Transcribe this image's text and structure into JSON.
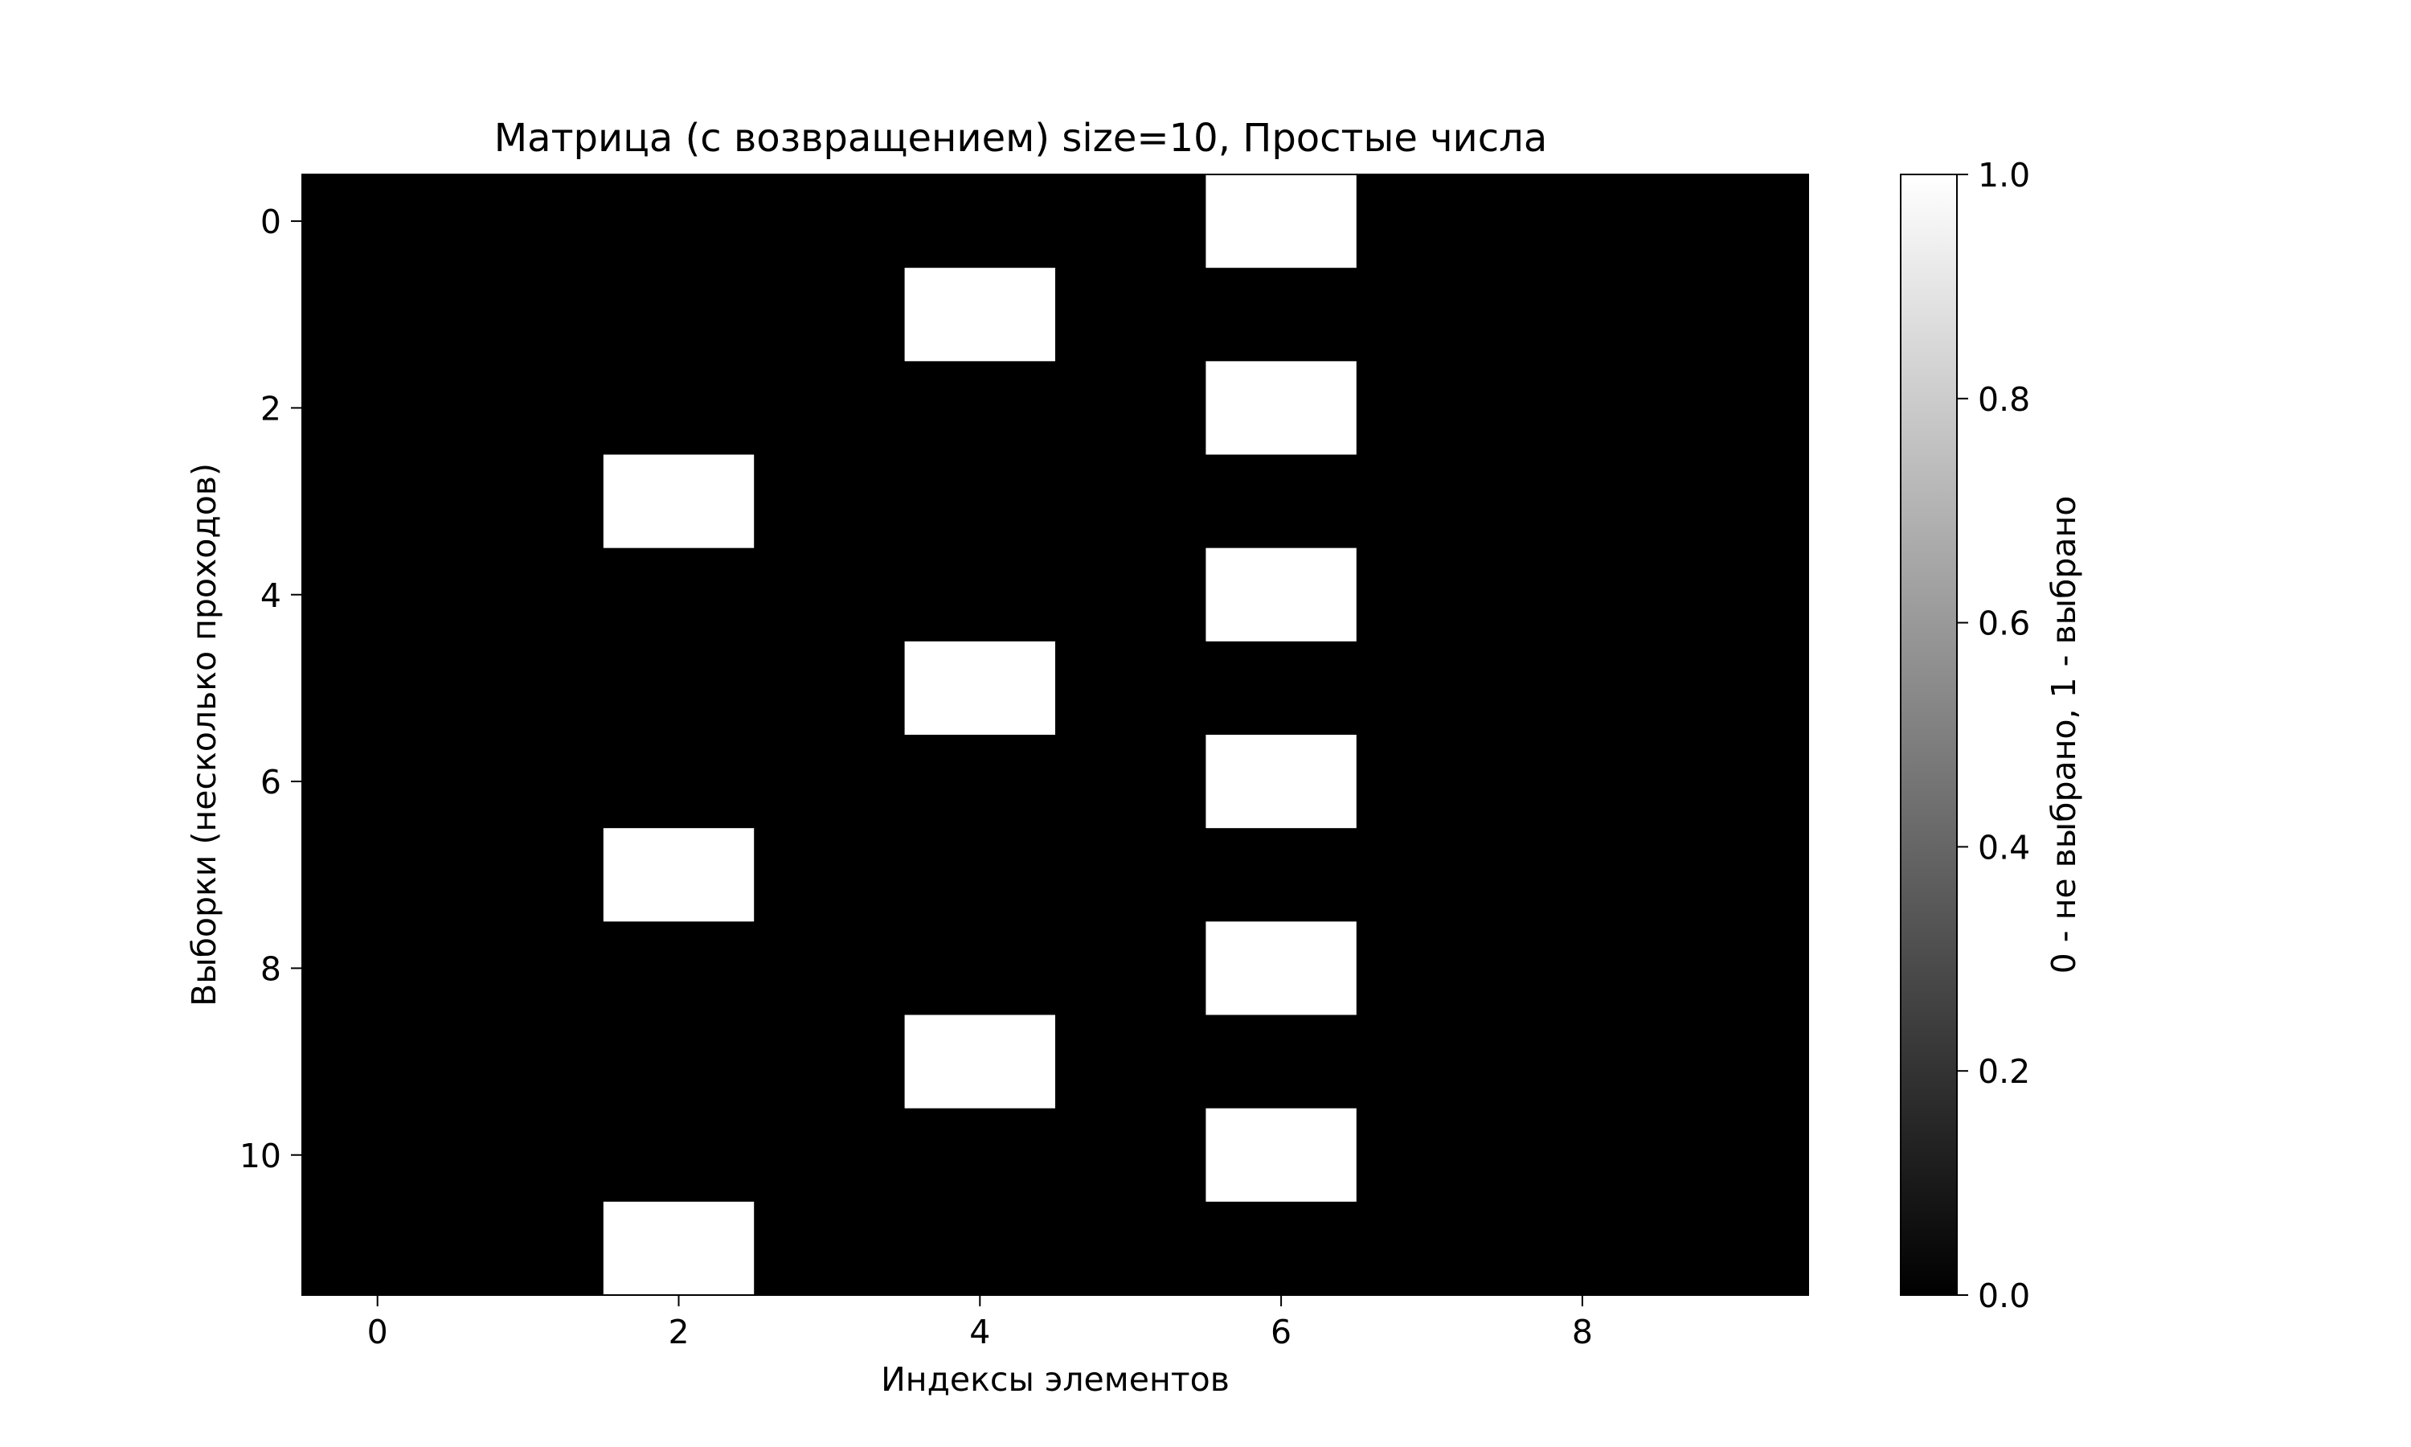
{
  "chart_data": {
    "type": "heatmap",
    "title": "Матрица (с возвращением) size=10, Простые числа",
    "xlabel": "Индексы элементов",
    "ylabel": "Выборки (несколько проходов)",
    "colorbar_label": "0 - не выбрано, 1 - выбрано",
    "colormap": "gray",
    "color_low": "#000000",
    "color_high": "#ffffff",
    "vmin": 0,
    "vmax": 1,
    "rows": 12,
    "cols": 10,
    "x_ticks": [
      0,
      2,
      4,
      6,
      8
    ],
    "y_ticks": [
      0,
      2,
      4,
      6,
      8,
      10
    ],
    "colorbar_ticks": [
      "0.0",
      "0.2",
      "0.4",
      "0.6",
      "0.8",
      "1.0"
    ],
    "grid": false,
    "matrix": [
      [
        0,
        0,
        0,
        0,
        0,
        0,
        1,
        0,
        0,
        0
      ],
      [
        0,
        0,
        0,
        0,
        1,
        0,
        0,
        0,
        0,
        0
      ],
      [
        0,
        0,
        0,
        0,
        0,
        0,
        1,
        0,
        0,
        0
      ],
      [
        0,
        0,
        1,
        0,
        0,
        0,
        0,
        0,
        0,
        0
      ],
      [
        0,
        0,
        0,
        0,
        0,
        0,
        1,
        0,
        0,
        0
      ],
      [
        0,
        0,
        0,
        0,
        1,
        0,
        0,
        0,
        0,
        0
      ],
      [
        0,
        0,
        0,
        0,
        0,
        0,
        1,
        0,
        0,
        0
      ],
      [
        0,
        0,
        1,
        0,
        0,
        0,
        0,
        0,
        0,
        0
      ],
      [
        0,
        0,
        0,
        0,
        0,
        0,
        1,
        0,
        0,
        0
      ],
      [
        0,
        0,
        0,
        0,
        1,
        0,
        0,
        0,
        0,
        0
      ],
      [
        0,
        0,
        0,
        0,
        0,
        0,
        1,
        0,
        0,
        0
      ],
      [
        0,
        0,
        1,
        0,
        0,
        0,
        0,
        0,
        0,
        0
      ]
    ]
  }
}
